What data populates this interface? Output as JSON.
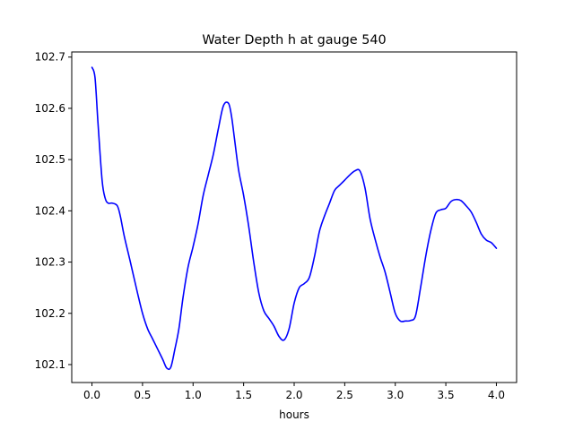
{
  "chart_data": {
    "type": "line",
    "title": "Water Depth h at gauge 540",
    "xlabel": "hours",
    "ylabel": "",
    "xlim": [
      -0.2,
      4.2
    ],
    "ylim": [
      102.065,
      102.71
    ],
    "xticks": [
      0.0,
      0.5,
      1.0,
      1.5,
      2.0,
      2.5,
      3.0,
      3.5,
      4.0
    ],
    "xtick_labels": [
      "0.0",
      "0.5",
      "1.0",
      "1.5",
      "2.0",
      "2.5",
      "3.0",
      "3.5",
      "4.0"
    ],
    "yticks": [
      102.1,
      102.2,
      102.3,
      102.4,
      102.5,
      102.6,
      102.7
    ],
    "ytick_labels": [
      "102.1",
      "102.2",
      "102.3",
      "102.4",
      "102.5",
      "102.6",
      "102.7"
    ],
    "grid": false,
    "legend": "none",
    "series": [
      {
        "color": "#0000ff",
        "x": [
          0.0,
          0.03,
          0.06,
          0.1,
          0.13,
          0.16,
          0.2,
          0.25,
          0.28,
          0.32,
          0.38,
          0.45,
          0.5,
          0.55,
          0.6,
          0.65,
          0.7,
          0.74,
          0.78,
          0.82,
          0.86,
          0.9,
          0.95,
          1.0,
          1.05,
          1.1,
          1.15,
          1.2,
          1.25,
          1.3,
          1.35,
          1.38,
          1.41,
          1.45,
          1.5,
          1.55,
          1.6,
          1.65,
          1.7,
          1.75,
          1.8,
          1.85,
          1.9,
          1.95,
          2.0,
          2.05,
          2.1,
          2.15,
          2.2,
          2.25,
          2.3,
          2.35,
          2.4,
          2.45,
          2.5,
          2.55,
          2.6,
          2.65,
          2.7,
          2.75,
          2.8,
          2.85,
          2.9,
          2.95,
          3.0,
          3.05,
          3.1,
          3.15,
          3.2,
          3.25,
          3.3,
          3.35,
          3.4,
          3.45,
          3.5,
          3.55,
          3.6,
          3.65,
          3.7,
          3.75,
          3.8,
          3.85,
          3.9,
          3.95,
          4.0
        ],
        "y": [
          102.68,
          102.66,
          102.57,
          102.46,
          102.425,
          102.415,
          102.415,
          102.41,
          102.39,
          102.35,
          102.3,
          102.24,
          102.2,
          102.17,
          102.15,
          102.13,
          102.11,
          102.093,
          102.095,
          102.13,
          102.17,
          102.23,
          102.29,
          102.33,
          102.375,
          102.43,
          102.47,
          102.51,
          102.56,
          102.605,
          102.61,
          102.585,
          102.54,
          102.48,
          102.43,
          102.37,
          102.3,
          102.24,
          102.205,
          102.19,
          102.175,
          102.155,
          102.148,
          102.17,
          102.22,
          102.25,
          102.258,
          102.27,
          102.31,
          102.36,
          102.39,
          102.415,
          102.44,
          102.45,
          102.46,
          102.47,
          102.478,
          102.478,
          102.445,
          102.385,
          102.345,
          102.31,
          102.28,
          102.24,
          102.2,
          102.185,
          102.185,
          102.186,
          102.195,
          102.25,
          102.31,
          102.36,
          102.395,
          102.402,
          102.405,
          102.418,
          102.422,
          102.42,
          102.41,
          102.398,
          102.378,
          102.355,
          102.343,
          102.338,
          102.327
        ]
      }
    ]
  }
}
